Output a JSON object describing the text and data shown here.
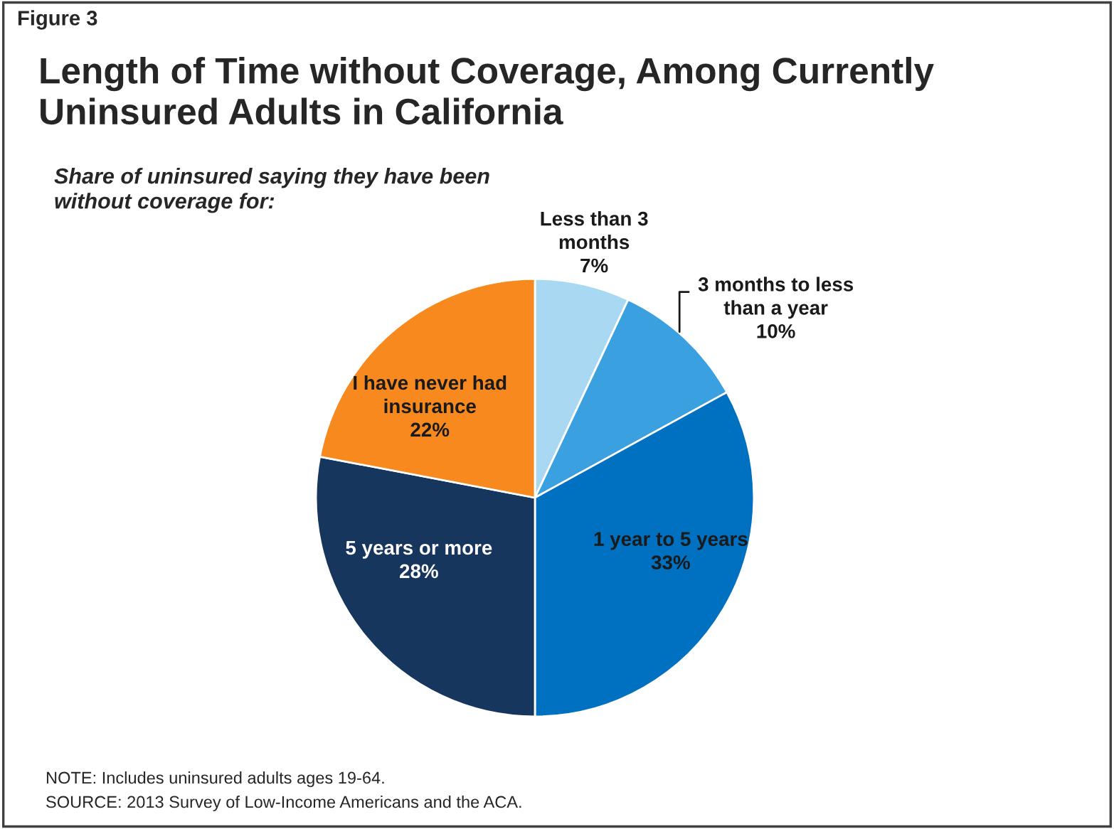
{
  "chart_data": {
    "type": "pie",
    "title": "Length of Time without Coverage, Among Currently Uninsured Adults in California",
    "subtitle": "Share of uninsured saying they have been\nwithout coverage for:",
    "categories": [
      "Less than 3\nmonths",
      "3 months to less\nthan a year",
      "1 year to 5 years",
      "5 years or more",
      "I have never had\ninsurance"
    ],
    "values": [
      7,
      10,
      33,
      28,
      22
    ],
    "value_labels": [
      "7%",
      "10%",
      "33%",
      "28%",
      "22%"
    ],
    "colors": [
      "#a9d9f2",
      "#3aa0e0",
      "#0070c0",
      "#17365d",
      "#f7891f"
    ],
    "annotations": [
      "Figure 3",
      "NOTE: Includes uninsured adults ages 19-64.",
      "SOURCE: 2013 Survey of Low-Income Americans and the ACA."
    ]
  }
}
